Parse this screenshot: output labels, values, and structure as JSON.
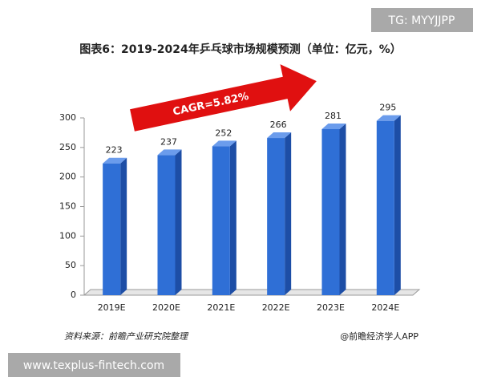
{
  "chart_data": {
    "type": "bar",
    "title": "图表6：2019-2024年乒乓球市场规模预测（单位：亿元，%）",
    "categories": [
      "2019E",
      "2020E",
      "2021E",
      "2022E",
      "2023E",
      "2024E"
    ],
    "values": [
      223,
      237,
      252,
      266,
      281,
      295
    ],
    "color": "#2f6fd6",
    "ylim": [
      0,
      300
    ],
    "yticks": [
      0,
      50,
      100,
      150,
      200,
      250,
      300
    ],
    "grid": false,
    "annotation": "CAGR=5.82%",
    "source": "资料来源：前瞻产业研究院整理",
    "credit": "@前瞻经济学人APP"
  },
  "watermark_top": "TG: MYYJJPP",
  "watermark_bottom": "www.texplus-fintech.com"
}
